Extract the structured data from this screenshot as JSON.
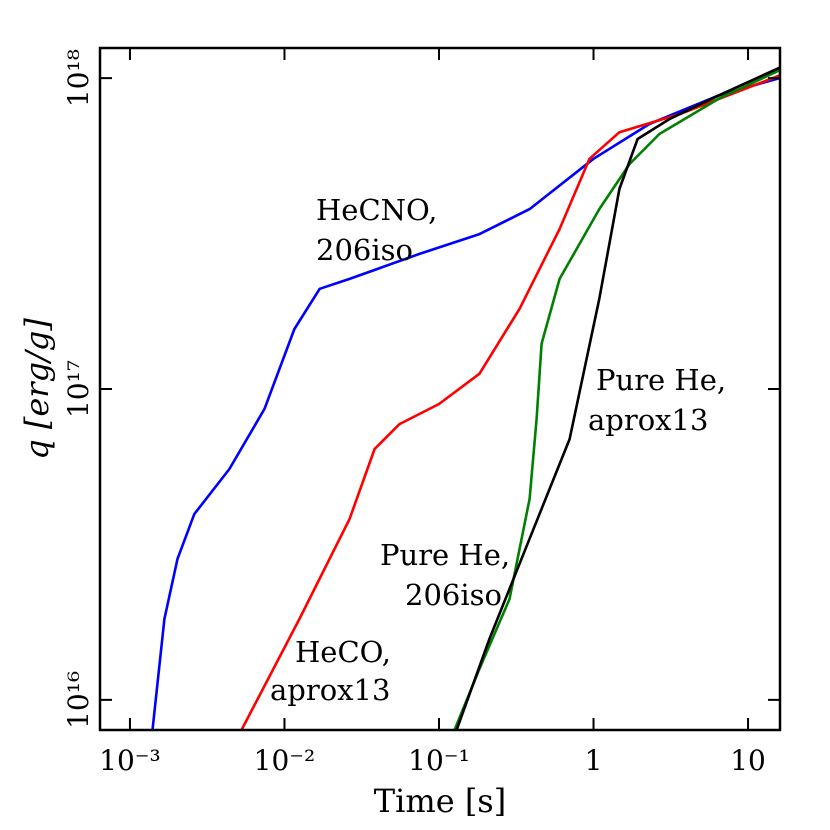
{
  "chart_data": {
    "type": "line",
    "x_label": "Time [s]",
    "y_label": "q [erg/g]",
    "xscale": "log",
    "yscale": "log",
    "xlim": [
      0.00064,
      16.1
    ],
    "ylim": [
      8000000000000000.0,
      1.25e+18
    ],
    "xticks": [
      {
        "value": 0.001,
        "label": "10⁻³"
      },
      {
        "value": 0.01,
        "label": "10⁻²"
      },
      {
        "value": 0.1,
        "label": "10⁻¹"
      },
      1,
      10
    ],
    "yticks": [
      {
        "value": 1e+16,
        "label": "10¹⁶"
      },
      {
        "value": 1e+17,
        "label": "10¹⁷"
      },
      {
        "value": 1e+18,
        "label": "10¹⁸"
      }
    ],
    "series": [
      {
        "name": [
          "HeCNO,",
          "206iso"
        ],
        "color": "#0000ff",
        "x": [
          0.0014,
          0.00167,
          0.00203,
          0.00261,
          0.0044,
          0.00743,
          0.0116,
          0.0169,
          0.0264,
          0.0748,
          0.183,
          0.386,
          1.0,
          2.3,
          6.54,
          16.0
        ],
        "values": [
          8000000000000000.0,
          1.82e+16,
          2.84e+16,
          3.96e+16,
          5.53e+16,
          8.63e+16,
          1.56e+17,
          2.1e+17,
          2.26e+17,
          2.72e+17,
          3.15e+17,
          3.79e+17,
          5.5e+17,
          7.12e+17,
          8.82e+17,
          1e+18
        ]
      },
      {
        "name": [
          "HeCO,",
          "aprox13"
        ],
        "color": "#ff0000",
        "x": [
          0.00527,
          0.0125,
          0.0264,
          0.0383,
          0.0555,
          0.1,
          0.183,
          0.332,
          0.603,
          0.942,
          1.47,
          3.61,
          16.0
        ],
        "values": [
          8000000000000000.0,
          1.82e+16,
          3.82e+16,
          6.41e+16,
          7.71e+16,
          8.95e+16,
          1.12e+17,
          1.81e+17,
          3.27e+17,
          5.5e+17,
          6.7e+17,
          7.66e+17,
          1.02e+18
        ]
      },
      {
        "name": [
          "Pure He,",
          "206iso"
        ],
        "color": "#008000",
        "x": [
          0.126,
          0.183,
          0.286,
          0.386,
          0.428,
          0.461,
          0.603,
          1.09,
          1.71,
          2.67,
          6.54,
          16.0
        ],
        "values": [
          8000000000000000.0,
          1.26e+16,
          2.11e+16,
          4.43e+16,
          8.01e+16,
          1.4e+17,
          2.26e+17,
          3.79e+17,
          5.29e+17,
          6.61e+17,
          8.62e+17,
          1.06e+18
        ]
      },
      {
        "name": [
          "Pure He,",
          "aprox13"
        ],
        "color": "#000000",
        "x": [
          0.13,
          0.212,
          0.386,
          0.7,
          1.09,
          1.47,
          1.93,
          3.1,
          6.54,
          16.0
        ],
        "values": [
          8000000000000000.0,
          1.57e+16,
          3.3e+16,
          6.9e+16,
          1.95e+17,
          4.4e+17,
          6.37e+17,
          7.38e+17,
          8.82e+17,
          1.08e+18
        ]
      }
    ]
  }
}
